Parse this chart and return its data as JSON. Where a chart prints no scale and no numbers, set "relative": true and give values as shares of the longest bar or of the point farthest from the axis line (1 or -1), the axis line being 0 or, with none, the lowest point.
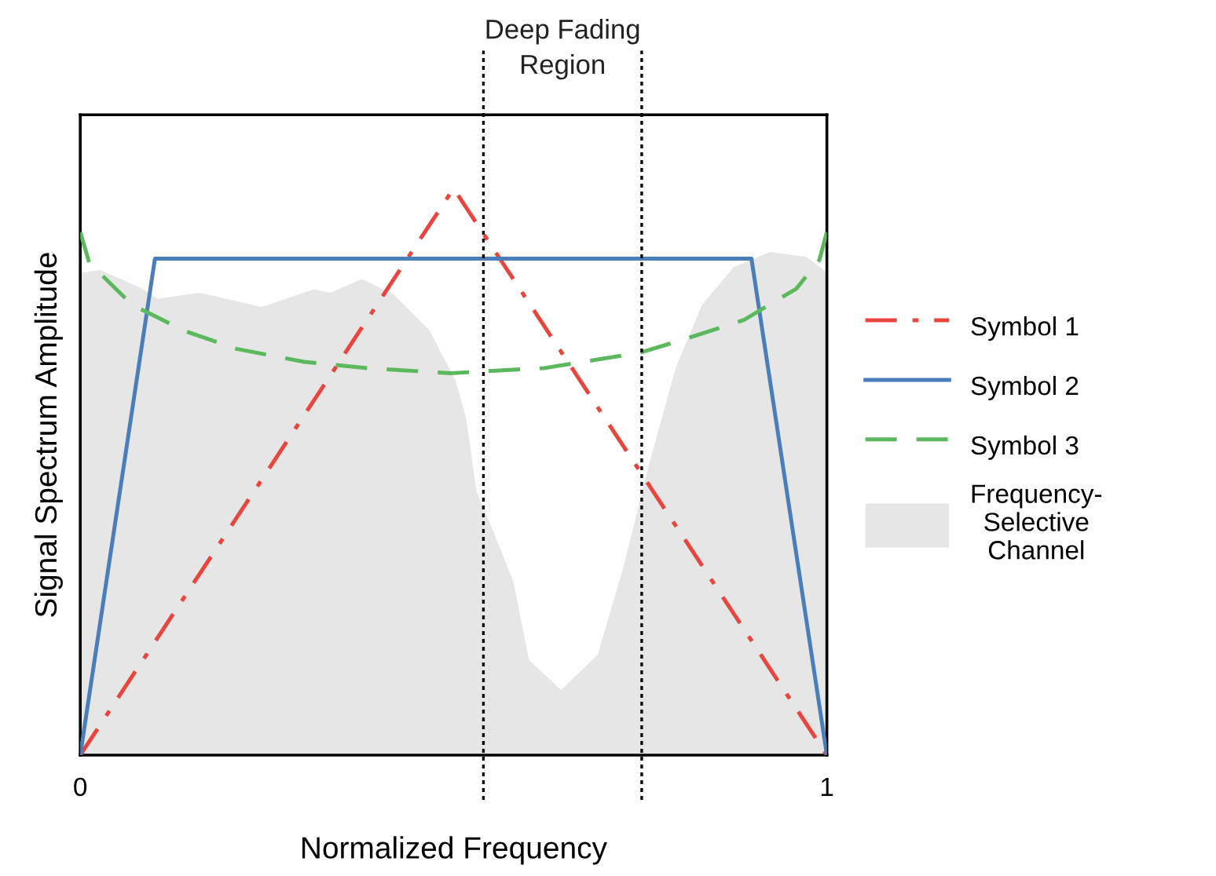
{
  "chart_data": {
    "type": "line",
    "relative": true,
    "xlabel": "Normalized Frequency",
    "ylabel": "Signal Spectrum Amplitude",
    "xlim": [
      0,
      1
    ],
    "xticks": [
      0,
      1
    ],
    "legend": "right",
    "annotations": [
      "Deep Fading Region"
    ],
    "ref_lines": [
      {
        "axis": "x",
        "value": 0.54,
        "color": "#000000",
        "line_style": "dotted"
      },
      {
        "axis": "x",
        "value": 0.752,
        "color": "#000000",
        "line_style": "dotted"
      }
    ],
    "series": [
      {
        "name": "Symbol 1",
        "color": "#e8453c",
        "line_style": "dashdot",
        "x": [
          0,
          0.5,
          1
        ],
        "values": [
          0,
          1,
          0
        ]
      },
      {
        "name": "Symbol 2",
        "color": "#4a7ebb",
        "line_style": "solid",
        "x": [
          0,
          0.1,
          0.899,
          1
        ],
        "values": [
          0,
          0.876,
          0.876,
          0
        ]
      },
      {
        "name": "Symbol 3",
        "color": "#5cb85c",
        "line_style": "dashed",
        "x": [
          0,
          0.012,
          0.069,
          0.139,
          0.209,
          0.3,
          0.384,
          0.496,
          0.622,
          0.749,
          0.812,
          0.889,
          0.959,
          0.99,
          1
        ],
        "values": [
          0.923,
          0.869,
          0.795,
          0.749,
          0.717,
          0.694,
          0.683,
          0.674,
          0.683,
          0.71,
          0.735,
          0.768,
          0.823,
          0.874,
          0.923
        ]
      },
      {
        "name": "Frequency-Selective Channel",
        "type": "area",
        "color": "#e6e6e6",
        "x": [
          0,
          0.027,
          0.083,
          0.103,
          0.159,
          0.243,
          0.313,
          0.335,
          0.377,
          0.419,
          0.468,
          0.503,
          0.517,
          0.531,
          0.552,
          0.58,
          0.601,
          0.644,
          0.693,
          0.728,
          0.763,
          0.798,
          0.833,
          0.875,
          0.924,
          0.973,
          1
        ],
        "values": [
          0.851,
          0.856,
          0.823,
          0.805,
          0.816,
          0.791,
          0.822,
          0.816,
          0.84,
          0.814,
          0.749,
          0.66,
          0.593,
          0.464,
          0.399,
          0.306,
          0.168,
          0.115,
          0.177,
          0.334,
          0.519,
          0.685,
          0.795,
          0.861,
          0.888,
          0.879,
          0.852
        ]
      }
    ]
  }
}
